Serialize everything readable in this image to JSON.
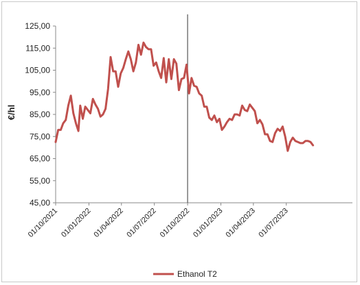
{
  "chart_data": {
    "type": "line",
    "title": "",
    "xlabel": "",
    "ylabel": "€/hl",
    "ylim": [
      45,
      125
    ],
    "xlim": [
      "2021-10-01",
      "2023-12-31"
    ],
    "y_ticks": [
      "45,00",
      "55,00",
      "65,00",
      "75,00",
      "85,00",
      "95,00",
      "105,00",
      "115,00",
      "125,00"
    ],
    "x_ticks": [
      "01/10/2021",
      "01/01/2022",
      "01/04/2022",
      "01/07/2022",
      "01/10/2022",
      "01/01/2023",
      "01/04/2023",
      "01/07/2023"
    ],
    "vertical_marker": "2022-10-01",
    "grid": false,
    "legend_position": "bottom",
    "colors": {
      "series": "#c0504d",
      "marker_line": "#555555"
    },
    "series": [
      {
        "name": "Ethanol T2",
        "points": [
          [
            "2021-10-01",
            72.5
          ],
          [
            "2021-10-08",
            78.0
          ],
          [
            "2021-10-15",
            78.0
          ],
          [
            "2021-10-22",
            81.0
          ],
          [
            "2021-10-29",
            82.5
          ],
          [
            "2021-11-05",
            89.0
          ],
          [
            "2021-11-12",
            93.5
          ],
          [
            "2021-11-19",
            85.5
          ],
          [
            "2021-11-26",
            81.0
          ],
          [
            "2021-12-03",
            77.5
          ],
          [
            "2021-12-08",
            89.0
          ],
          [
            "2021-12-15",
            83.0
          ],
          [
            "2021-12-22",
            88.5
          ],
          [
            "2021-12-29",
            87.0
          ],
          [
            "2022-01-05",
            85.5
          ],
          [
            "2022-01-12",
            92.0
          ],
          [
            "2022-01-19",
            89.5
          ],
          [
            "2022-01-26",
            87.5
          ],
          [
            "2022-02-02",
            84.0
          ],
          [
            "2022-02-09",
            85.0
          ],
          [
            "2022-02-16",
            87.5
          ],
          [
            "2022-02-23",
            96.5
          ],
          [
            "2022-03-02",
            111.0
          ],
          [
            "2022-03-09",
            104.5
          ],
          [
            "2022-03-16",
            104.5
          ],
          [
            "2022-03-23",
            97.5
          ],
          [
            "2022-03-30",
            103.5
          ],
          [
            "2022-04-06",
            106.0
          ],
          [
            "2022-04-13",
            110.0
          ],
          [
            "2022-04-20",
            113.5
          ],
          [
            "2022-04-27",
            110.0
          ],
          [
            "2022-05-04",
            104.5
          ],
          [
            "2022-05-11",
            108.5
          ],
          [
            "2022-05-18",
            116.5
          ],
          [
            "2022-05-25",
            112.0
          ],
          [
            "2022-06-01",
            117.5
          ],
          [
            "2022-06-08",
            115.5
          ],
          [
            "2022-06-15",
            114.5
          ],
          [
            "2022-06-22",
            114.5
          ],
          [
            "2022-06-29",
            107.0
          ],
          [
            "2022-07-06",
            108.5
          ],
          [
            "2022-07-13",
            104.5
          ],
          [
            "2022-07-20",
            101.5
          ],
          [
            "2022-07-27",
            110.5
          ],
          [
            "2022-08-03",
            99.5
          ],
          [
            "2022-08-10",
            110.0
          ],
          [
            "2022-08-17",
            101.0
          ],
          [
            "2022-08-24",
            110.0
          ],
          [
            "2022-08-31",
            108.0
          ],
          [
            "2022-09-07",
            96.0
          ],
          [
            "2022-09-14",
            101.0
          ],
          [
            "2022-09-21",
            101.5
          ],
          [
            "2022-09-28",
            107.5
          ],
          [
            "2022-10-05",
            94.5
          ],
          [
            "2022-10-12",
            101.5
          ],
          [
            "2022-10-19",
            98.0
          ],
          [
            "2022-10-26",
            97.5
          ],
          [
            "2022-11-02",
            94.5
          ],
          [
            "2022-11-09",
            93.5
          ],
          [
            "2022-11-16",
            88.5
          ],
          [
            "2022-11-23",
            88.5
          ],
          [
            "2022-11-30",
            83.5
          ],
          [
            "2022-12-07",
            82.5
          ],
          [
            "2022-12-14",
            84.5
          ],
          [
            "2022-12-21",
            81.5
          ],
          [
            "2022-12-28",
            83.0
          ],
          [
            "2023-01-04",
            78.0
          ],
          [
            "2023-01-11",
            79.5
          ],
          [
            "2023-01-18",
            81.5
          ],
          [
            "2023-01-25",
            83.0
          ],
          [
            "2023-02-01",
            82.5
          ],
          [
            "2023-02-08",
            85.0
          ],
          [
            "2023-02-15",
            85.0
          ],
          [
            "2023-02-22",
            84.5
          ],
          [
            "2023-03-01",
            89.0
          ],
          [
            "2023-03-08",
            87.0
          ],
          [
            "2023-03-15",
            86.5
          ],
          [
            "2023-03-22",
            89.5
          ],
          [
            "2023-03-29",
            88.0
          ],
          [
            "2023-04-05",
            86.5
          ],
          [
            "2023-04-12",
            81.0
          ],
          [
            "2023-04-19",
            82.5
          ],
          [
            "2023-04-26",
            80.5
          ],
          [
            "2023-05-03",
            76.0
          ],
          [
            "2023-05-10",
            76.0
          ],
          [
            "2023-05-17",
            73.0
          ],
          [
            "2023-05-24",
            72.5
          ],
          [
            "2023-05-31",
            76.5
          ],
          [
            "2023-06-07",
            78.5
          ],
          [
            "2023-06-14",
            77.5
          ],
          [
            "2023-06-21",
            79.5
          ],
          [
            "2023-06-28",
            75.0
          ],
          [
            "2023-07-05",
            68.5
          ],
          [
            "2023-07-12",
            72.5
          ],
          [
            "2023-07-19",
            74.5
          ],
          [
            "2023-07-26",
            73.0
          ],
          [
            "2023-08-02",
            72.5
          ],
          [
            "2023-08-09",
            72.0
          ],
          [
            "2023-08-16",
            72.0
          ],
          [
            "2023-08-23",
            73.0
          ],
          [
            "2023-08-30",
            73.0
          ],
          [
            "2023-09-06",
            72.5
          ],
          [
            "2023-09-13",
            71.0
          ]
        ]
      }
    ]
  }
}
